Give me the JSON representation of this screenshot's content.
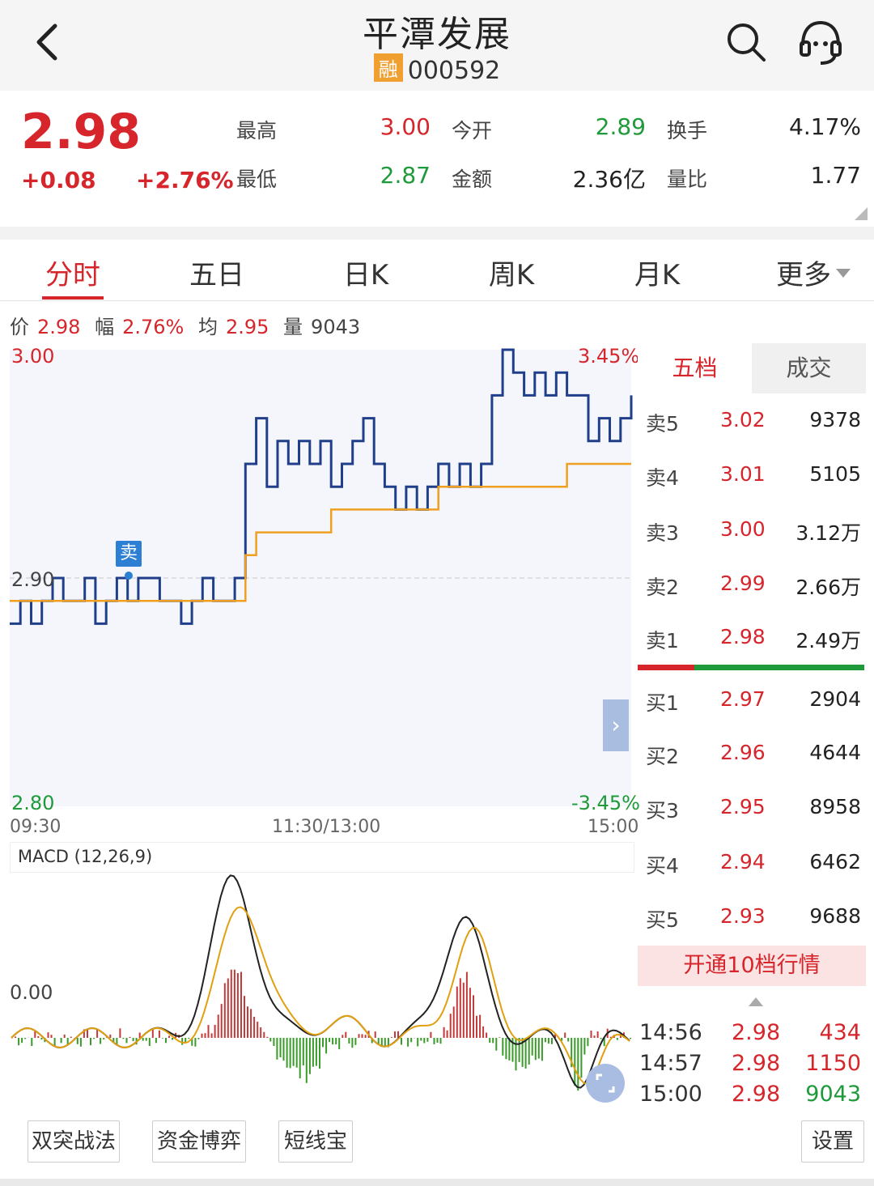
{
  "header": {
    "title": "平潭发展",
    "badge": "融",
    "code": "000592"
  },
  "quote": {
    "price": "2.98",
    "change": "+0.08",
    "change_pct": "+2.76%",
    "fields": [
      {
        "label": "最高",
        "value": "3.00",
        "color": "red"
      },
      {
        "label": "今开",
        "value": "2.89",
        "color": "green"
      },
      {
        "label": "换手",
        "value": "4.17%",
        "color": "dark"
      },
      {
        "label": "最低",
        "value": "2.87",
        "color": "green"
      },
      {
        "label": "金额",
        "value": "2.36亿",
        "color": "dark"
      },
      {
        "label": "量比",
        "value": "1.77",
        "color": "dark"
      }
    ]
  },
  "tabs": [
    "分时",
    "五日",
    "日K",
    "周K",
    "月K",
    "更多"
  ],
  "active_tab": "分时",
  "info": {
    "price_label": "价",
    "price": "2.98",
    "amp_label": "幅",
    "amp": "2.76%",
    "avg_label": "均",
    "avg": "2.95",
    "vol_label": "量",
    "vol": "9043"
  },
  "chart_labels": {
    "y_top": "3.00",
    "y_mid": "2.90",
    "y_bottom": "2.80",
    "pct_top": "3.45%",
    "pct_bottom": "-3.45%",
    "x_start": "09:30",
    "x_mid": "11:30/13:00",
    "x_end": "15:00",
    "sell_marker": "卖",
    "macd_title": "MACD (12,26,9)",
    "macd_zero": "0.00"
  },
  "chart_data": {
    "type": "line",
    "title": "",
    "ylim": [
      2.8,
      3.0
    ],
    "series": [
      {
        "values": [
          2.88,
          2.89,
          2.88,
          2.89,
          2.9,
          2.89,
          2.89,
          2.9,
          2.88,
          2.89,
          2.9,
          2.89,
          2.9,
          2.9,
          2.89,
          2.89,
          2.88,
          2.89,
          2.9,
          2.89,
          2.89,
          2.9,
          2.95,
          2.97,
          2.94,
          2.96,
          2.95,
          2.96,
          2.95,
          2.96,
          2.94,
          2.95,
          2.96,
          2.97,
          2.95,
          2.94,
          2.93,
          2.94,
          2.93,
          2.94,
          2.95,
          2.94,
          2.95,
          2.94,
          2.95,
          2.98,
          3.0,
          2.99,
          2.98,
          2.99,
          2.98,
          2.99,
          2.98,
          2.98,
          2.96,
          2.97,
          2.96,
          2.97,
          2.98
        ]
      },
      {
        "values": [
          2.89,
          2.89,
          2.89,
          2.89,
          2.89,
          2.89,
          2.89,
          2.89,
          2.89,
          2.89,
          2.89,
          2.89,
          2.89,
          2.89,
          2.89,
          2.89,
          2.89,
          2.89,
          2.89,
          2.89,
          2.89,
          2.89,
          2.91,
          2.92,
          2.92,
          2.92,
          2.92,
          2.92,
          2.92,
          2.92,
          2.93,
          2.93,
          2.93,
          2.93,
          2.93,
          2.93,
          2.93,
          2.93,
          2.93,
          2.93,
          2.94,
          2.94,
          2.94,
          2.94,
          2.94,
          2.94,
          2.94,
          2.94,
          2.94,
          2.94,
          2.94,
          2.94,
          2.95,
          2.95,
          2.95,
          2.95,
          2.95,
          2.95,
          2.95
        ]
      }
    ]
  },
  "order_book": {
    "tabs": [
      "五档",
      "成交"
    ],
    "asks": [
      {
        "label": "卖5",
        "price": "3.02",
        "vol": "9378"
      },
      {
        "label": "卖4",
        "price": "3.01",
        "vol": "5105"
      },
      {
        "label": "卖3",
        "price": "3.00",
        "vol": "3.12万"
      },
      {
        "label": "卖2",
        "price": "2.99",
        "vol": "2.66万"
      },
      {
        "label": "卖1",
        "price": "2.98",
        "vol": "2.49万"
      }
    ],
    "bids": [
      {
        "label": "买1",
        "price": "2.97",
        "vol": "2904"
      },
      {
        "label": "买2",
        "price": "2.96",
        "vol": "4644"
      },
      {
        "label": "买3",
        "price": "2.95",
        "vol": "8958"
      },
      {
        "label": "买4",
        "price": "2.94",
        "vol": "6462"
      },
      {
        "label": "买5",
        "price": "2.93",
        "vol": "9688"
      }
    ],
    "open10": "开通10档行情",
    "trades": [
      {
        "time": "14:56",
        "price": "2.98",
        "vol": "434",
        "color": "red"
      },
      {
        "time": "14:57",
        "price": "2.98",
        "vol": "1150",
        "color": "red"
      },
      {
        "time": "15:00",
        "price": "2.98",
        "vol": "9043",
        "color": "green"
      }
    ]
  },
  "bottom": {
    "buttons": [
      "双突战法",
      "资金博弈",
      "短线宝"
    ],
    "settings": "设置"
  },
  "colors": {
    "red": "#d6262c",
    "green": "#1e9a3a",
    "price_line": "#1f3f8a",
    "avg_line": "#f0a020"
  }
}
